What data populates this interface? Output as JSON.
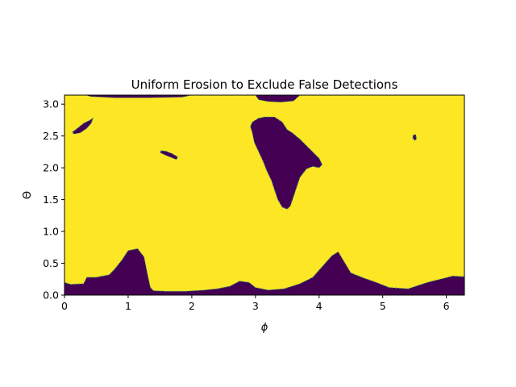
{
  "chart_data": {
    "type": "heatmap",
    "title": "Uniform Erosion to Exclude False Detections",
    "xlabel": "ϕ",
    "ylabel": "Θ",
    "xlim": [
      0,
      6.283
    ],
    "ylim": [
      0,
      3.1416
    ],
    "xticks": [
      "0",
      "1",
      "2",
      "3",
      "4",
      "5",
      "6"
    ],
    "yticks": [
      "0.0",
      "0.5",
      "1.0",
      "1.5",
      "2.0",
      "2.5",
      "3.0"
    ],
    "colormap": "viridis",
    "colors": {
      "background": "#fde725",
      "region": "#440154",
      "boundary": "#35b779",
      "axes": "#000000"
    },
    "background_value": 1,
    "region_value": 0,
    "regions": [
      {
        "name": "bottom-band",
        "points": [
          [
            0,
            0
          ],
          [
            6.283,
            0
          ],
          [
            6.283,
            0.29
          ],
          [
            6.1,
            0.3
          ],
          [
            5.9,
            0.25
          ],
          [
            5.7,
            0.2
          ],
          [
            5.4,
            0.1
          ],
          [
            5.1,
            0.12
          ],
          [
            4.9,
            0.2
          ],
          [
            4.7,
            0.27
          ],
          [
            4.5,
            0.35
          ],
          [
            4.3,
            0.68
          ],
          [
            4.2,
            0.62
          ],
          [
            4.05,
            0.45
          ],
          [
            3.9,
            0.28
          ],
          [
            3.7,
            0.18
          ],
          [
            3.45,
            0.1
          ],
          [
            3.2,
            0.08
          ],
          [
            3.0,
            0.12
          ],
          [
            2.9,
            0.2
          ],
          [
            2.75,
            0.22
          ],
          [
            2.6,
            0.14
          ],
          [
            2.4,
            0.1
          ],
          [
            2.2,
            0.08
          ],
          [
            1.9,
            0.06
          ],
          [
            1.6,
            0.06
          ],
          [
            1.4,
            0.07
          ],
          [
            1.35,
            0.12
          ],
          [
            1.3,
            0.35
          ],
          [
            1.25,
            0.6
          ],
          [
            1.15,
            0.73
          ],
          [
            1.0,
            0.7
          ],
          [
            0.9,
            0.55
          ],
          [
            0.78,
            0.4
          ],
          [
            0.7,
            0.32
          ],
          [
            0.5,
            0.28
          ],
          [
            0.35,
            0.28
          ],
          [
            0.3,
            0.18
          ],
          [
            0.1,
            0.17
          ],
          [
            0,
            0.2
          ]
        ]
      },
      {
        "name": "central-blob",
        "points": [
          [
            2.95,
            2.72
          ],
          [
            3.05,
            2.78
          ],
          [
            3.15,
            2.8
          ],
          [
            3.3,
            2.8
          ],
          [
            3.42,
            2.72
          ],
          [
            3.5,
            2.6
          ],
          [
            3.58,
            2.55
          ],
          [
            3.7,
            2.45
          ],
          [
            3.8,
            2.35
          ],
          [
            3.9,
            2.25
          ],
          [
            4.0,
            2.15
          ],
          [
            4.05,
            2.05
          ],
          [
            4.0,
            2.0
          ],
          [
            3.9,
            2.02
          ],
          [
            3.8,
            1.98
          ],
          [
            3.7,
            1.85
          ],
          [
            3.65,
            1.7
          ],
          [
            3.6,
            1.55
          ],
          [
            3.55,
            1.4
          ],
          [
            3.5,
            1.35
          ],
          [
            3.42,
            1.38
          ],
          [
            3.35,
            1.5
          ],
          [
            3.3,
            1.65
          ],
          [
            3.25,
            1.8
          ],
          [
            3.18,
            1.95
          ],
          [
            3.12,
            2.1
          ],
          [
            3.05,
            2.25
          ],
          [
            2.98,
            2.4
          ],
          [
            2.95,
            2.55
          ],
          [
            2.92,
            2.65
          ]
        ]
      },
      {
        "name": "top-strip",
        "points": [
          [
            0.35,
            3.142
          ],
          [
            2.0,
            3.142
          ],
          [
            1.85,
            3.11
          ],
          [
            1.3,
            3.1
          ],
          [
            0.8,
            3.1
          ],
          [
            0.4,
            3.12
          ]
        ]
      },
      {
        "name": "top-center-strip",
        "points": [
          [
            3.0,
            3.142
          ],
          [
            3.7,
            3.142
          ],
          [
            3.6,
            3.05
          ],
          [
            3.4,
            3.03
          ],
          [
            3.2,
            3.04
          ],
          [
            3.05,
            3.07
          ]
        ]
      },
      {
        "name": "left-blob",
        "points": [
          [
            0.12,
            2.56
          ],
          [
            0.2,
            2.62
          ],
          [
            0.3,
            2.7
          ],
          [
            0.4,
            2.75
          ],
          [
            0.45,
            2.78
          ],
          [
            0.42,
            2.7
          ],
          [
            0.35,
            2.62
          ],
          [
            0.25,
            2.55
          ],
          [
            0.15,
            2.53
          ]
        ]
      },
      {
        "name": "mid-left-blob",
        "points": [
          [
            1.52,
            2.27
          ],
          [
            1.6,
            2.26
          ],
          [
            1.7,
            2.22
          ],
          [
            1.78,
            2.17
          ],
          [
            1.76,
            2.13
          ],
          [
            1.68,
            2.16
          ],
          [
            1.58,
            2.2
          ],
          [
            1.5,
            2.24
          ]
        ]
      },
      {
        "name": "right-dot",
        "points": [
          [
            5.48,
            2.52
          ],
          [
            5.52,
            2.52
          ],
          [
            5.53,
            2.45
          ],
          [
            5.5,
            2.43
          ],
          [
            5.47,
            2.47
          ]
        ]
      }
    ]
  }
}
